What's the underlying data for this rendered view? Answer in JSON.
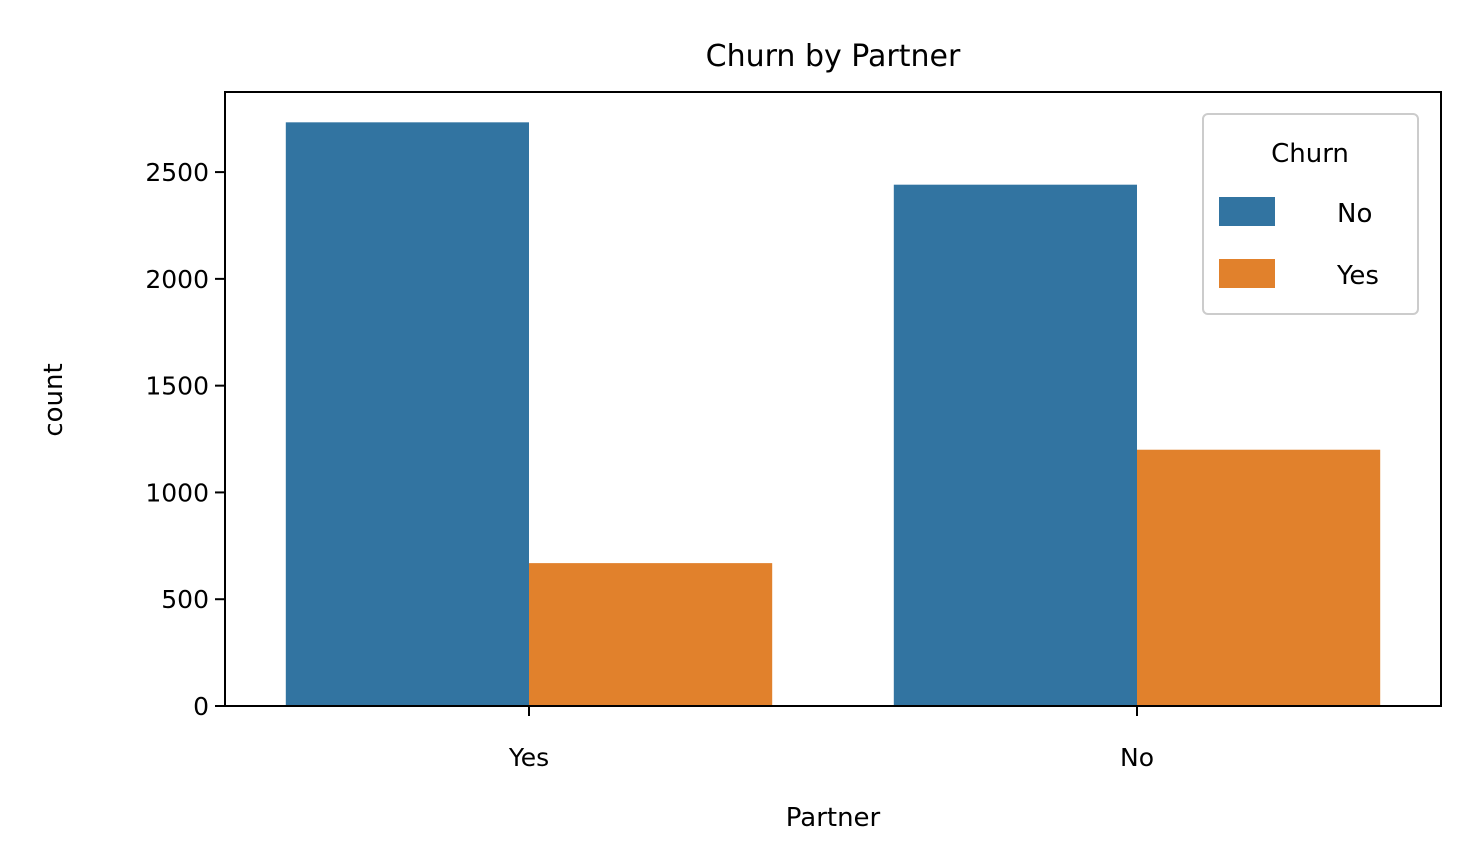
{
  "chart_data": {
    "type": "bar",
    "title": "Churn by Partner",
    "xlabel": "Partner",
    "ylabel": "count",
    "categories": [
      "Yes",
      "No"
    ],
    "series": [
      {
        "name": "No",
        "values": [
          2733,
          2441
        ],
        "color": "#3274a1"
      },
      {
        "name": "Yes",
        "values": [
          669,
          1200
        ],
        "color": "#e1812c"
      }
    ],
    "ylim": [
      0,
      2875
    ],
    "yticks": [
      0,
      500,
      1000,
      1500,
      2000,
      2500
    ],
    "legend": {
      "title": "Churn",
      "position": "upper-right"
    },
    "grid": false
  }
}
